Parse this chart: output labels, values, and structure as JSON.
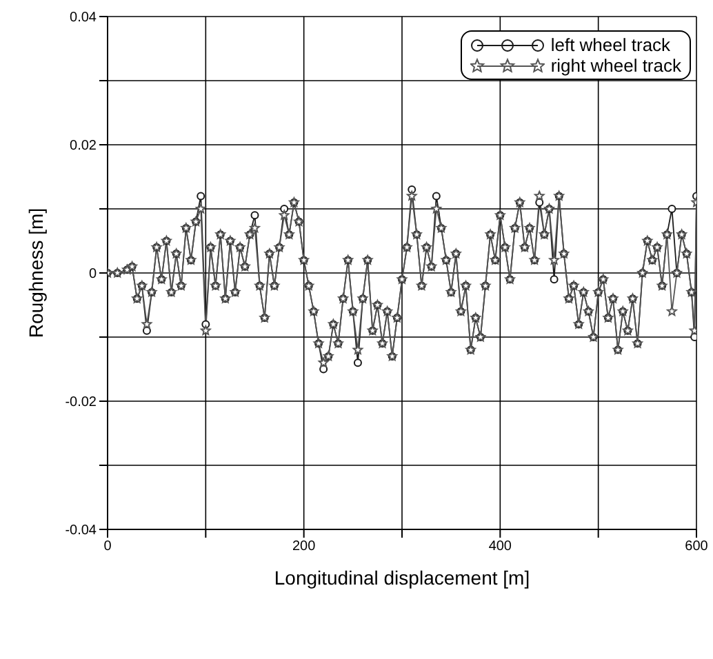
{
  "chart_data": {
    "type": "line",
    "xlabel": "Longitudinal displacement [m]",
    "ylabel": "Roughness [m]",
    "x": [
      0,
      10,
      20,
      25,
      30,
      35,
      40,
      45,
      50,
      55,
      60,
      65,
      70,
      75,
      80,
      85,
      90,
      95,
      100,
      105,
      110,
      115,
      120,
      125,
      130,
      135,
      140,
      145,
      150,
      155,
      160,
      165,
      170,
      175,
      180,
      185,
      190,
      195,
      200,
      205,
      210,
      215,
      220,
      225,
      230,
      235,
      240,
      245,
      250,
      255,
      260,
      265,
      270,
      275,
      280,
      285,
      290,
      295,
      300,
      305,
      310,
      315,
      320,
      325,
      330,
      335,
      340,
      345,
      350,
      355,
      360,
      365,
      370,
      375,
      380,
      385,
      390,
      395,
      400,
      405,
      410,
      415,
      420,
      425,
      430,
      435,
      440,
      445,
      450,
      455,
      460,
      465,
      470,
      475,
      480,
      485,
      490,
      495,
      500,
      505,
      510,
      515,
      520,
      525,
      530,
      535,
      540,
      545,
      550,
      555,
      560,
      565,
      570,
      575,
      580,
      585,
      590,
      595,
      598,
      600
    ],
    "series": [
      {
        "name": "left wheel track",
        "color": "#1a1a1a",
        "marker": "circle",
        "values": [
          0,
          0,
          0.0005,
          0.001,
          -0.004,
          -0.002,
          -0.009,
          -0.003,
          0.004,
          -0.001,
          0.005,
          -0.003,
          0.003,
          -0.002,
          0.007,
          0.002,
          0.008,
          0.012,
          -0.008,
          0.004,
          -0.002,
          0.006,
          -0.004,
          0.005,
          -0.003,
          0.004,
          0.001,
          0.006,
          0.009,
          -0.002,
          -0.007,
          0.003,
          -0.002,
          0.004,
          0.01,
          0.006,
          0.011,
          0.008,
          0.002,
          -0.002,
          -0.006,
          -0.011,
          -0.015,
          -0.013,
          -0.008,
          -0.011,
          -0.004,
          0.002,
          -0.006,
          -0.014,
          -0.004,
          0.002,
          -0.009,
          -0.005,
          -0.011,
          -0.006,
          -0.013,
          -0.007,
          -0.001,
          0.004,
          0.013,
          0.006,
          -0.002,
          0.004,
          0.001,
          0.012,
          0.007,
          0.002,
          -0.003,
          0.003,
          -0.006,
          -0.002,
          -0.012,
          -0.007,
          -0.01,
          -0.002,
          0.006,
          0.002,
          0.009,
          0.004,
          -0.001,
          0.007,
          0.011,
          0.004,
          0.007,
          0.002,
          0.011,
          0.006,
          0.01,
          -0.001,
          0.012,
          0.003,
          -0.004,
          -0.002,
          -0.008,
          -0.003,
          -0.006,
          -0.01,
          -0.003,
          -0.001,
          -0.007,
          -0.004,
          -0.012,
          -0.006,
          -0.009,
          -0.004,
          -0.011,
          0.0,
          0.005,
          0.002,
          0.004,
          -0.002,
          0.006,
          0.01,
          0.0,
          0.006,
          0.003,
          -0.003,
          -0.01,
          0.012
        ]
      },
      {
        "name": "right wheel track",
        "color": "#555555",
        "marker": "star",
        "values": [
          0,
          0,
          0.0005,
          0.001,
          -0.004,
          -0.002,
          -0.008,
          -0.003,
          0.004,
          -0.001,
          0.005,
          -0.003,
          0.003,
          -0.002,
          0.007,
          0.002,
          0.008,
          0.01,
          -0.009,
          0.004,
          -0.002,
          0.006,
          -0.004,
          0.005,
          -0.003,
          0.004,
          0.001,
          0.006,
          0.007,
          -0.002,
          -0.007,
          0.003,
          -0.002,
          0.004,
          0.009,
          0.006,
          0.011,
          0.008,
          0.002,
          -0.002,
          -0.006,
          -0.011,
          -0.014,
          -0.013,
          -0.008,
          -0.011,
          -0.004,
          0.002,
          -0.006,
          -0.012,
          -0.004,
          0.002,
          -0.009,
          -0.005,
          -0.011,
          -0.006,
          -0.013,
          -0.007,
          -0.001,
          0.004,
          0.012,
          0.006,
          -0.002,
          0.004,
          0.001,
          0.01,
          0.007,
          0.002,
          -0.003,
          0.003,
          -0.006,
          -0.002,
          -0.012,
          -0.007,
          -0.01,
          -0.002,
          0.006,
          0.002,
          0.009,
          0.004,
          -0.001,
          0.007,
          0.011,
          0.004,
          0.007,
          0.002,
          0.012,
          0.006,
          0.01,
          0.002,
          0.012,
          0.003,
          -0.004,
          -0.002,
          -0.008,
          -0.003,
          -0.006,
          -0.01,
          -0.003,
          -0.001,
          -0.007,
          -0.004,
          -0.012,
          -0.006,
          -0.009,
          -0.004,
          -0.011,
          0.0,
          0.005,
          0.002,
          0.004,
          -0.002,
          0.006,
          -0.006,
          0.0,
          0.006,
          0.003,
          -0.003,
          -0.009,
          0.011
        ]
      }
    ],
    "xlim": [
      0,
      600
    ],
    "xticks": [
      0,
      {
        "value": 100,
        "label": null
      },
      200,
      {
        "value": 300,
        "label": null
      },
      400,
      {
        "value": 500,
        "label": null
      },
      600
    ],
    "ylim": [
      -0.04,
      0.04
    ],
    "yticks": [
      -0.04,
      {
        "value": -0.03,
        "label": null
      },
      -0.02,
      {
        "value": -0.01,
        "label": null
      },
      0,
      {
        "value": 0.01,
        "label": null
      },
      0.02,
      {
        "value": 0.03,
        "label": null
      },
      0.04
    ],
    "grid": true,
    "legend": "top right",
    "line_style": "solid"
  }
}
